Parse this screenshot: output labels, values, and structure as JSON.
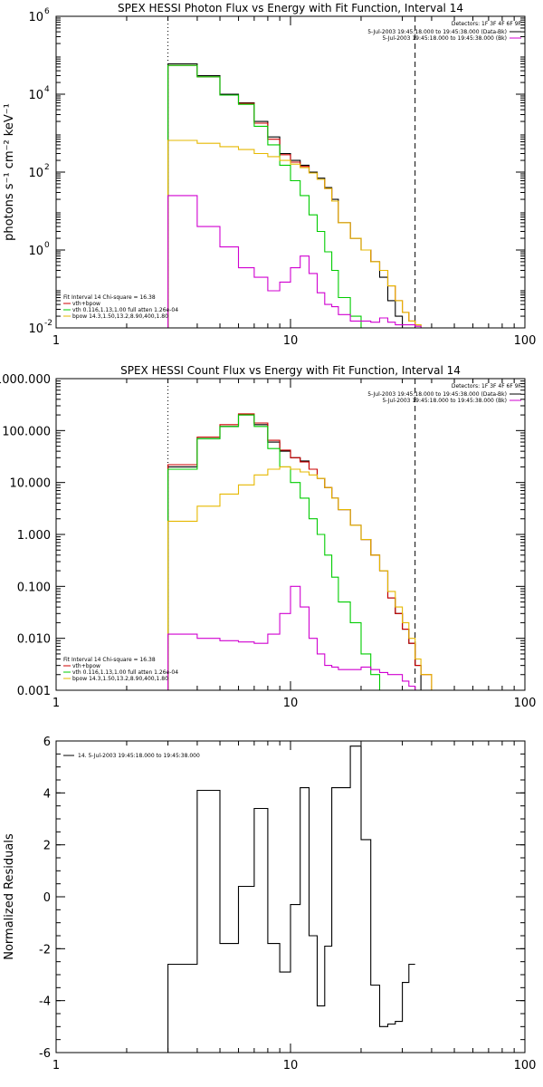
{
  "chart_data": [
    {
      "type": "line",
      "title": "SPEX HESSI Photon Flux vs Energy with Fit Function, Interval 14",
      "xlabel": "",
      "ylabel": "photons s⁻¹ cm⁻² keV⁻¹",
      "xscale": "log",
      "yscale": "log",
      "xlim": [
        1,
        100
      ],
      "ylim": [
        0.01,
        1000000
      ],
      "xticks": [
        1,
        10,
        100
      ],
      "yticks": [
        0.01,
        1,
        100,
        10000,
        1000000
      ],
      "ytick_labels": [
        "10",
        "10",
        "10",
        "10",
        "10"
      ],
      "ytick_exps": [
        "-2",
        "0",
        "2",
        "4",
        "6"
      ],
      "vlines": [
        {
          "x": 3,
          "style": "dotted"
        },
        {
          "x": 34,
          "style": "dashed"
        }
      ],
      "legend_header": "Detectors: 1F 3F 4F 6F 9F",
      "legend": [
        {
          "text": "5-Jul-2003 19:45:18.000 to 19:45:38.000 (Data-Bk)",
          "color": "#000000"
        },
        {
          "text": "5-Jul-2003 19:45:18.000 to 19:45:38.000 (Bk)",
          "color": "#d000d0"
        }
      ],
      "fit_header": "Fit Interval 14   Chi-square = 16.38",
      "fit_legend": [
        {
          "text": "vth+bpow",
          "color": "#cc0000"
        },
        {
          "text": "vth 0.116,1.13,1.00  full atten 1.26e-04",
          "color": "#00cc00"
        },
        {
          "text": "bpow 14.3,1.50,13.2,8.90,400,1.80",
          "color": "#e6b800"
        }
      ],
      "edges": [
        3,
        3.5,
        4,
        4.5,
        5,
        5.5,
        6,
        6.5,
        7,
        8,
        9,
        10,
        11,
        12,
        13,
        14,
        15,
        16,
        18,
        20,
        22,
        24,
        26,
        28,
        30,
        32,
        34,
        36,
        40
      ],
      "series": [
        {
          "name": "Data-Bk",
          "color": "#000000",
          "values": [
            60000,
            60000,
            30000,
            30000,
            10000,
            10000,
            6000,
            6000,
            2000,
            800,
            300,
            200,
            150,
            100,
            70,
            40,
            20,
            5,
            2,
            1,
            0.5,
            0.2,
            0.05,
            0.02,
            0.01,
            null,
            null,
            null
          ]
        },
        {
          "name": "vth+bpow",
          "color": "#cc0000",
          "values": [
            55000,
            55000,
            28000,
            28000,
            9500,
            9500,
            5800,
            5800,
            1800,
            700,
            280,
            180,
            140,
            95,
            65,
            38,
            18,
            5,
            2,
            1,
            0.5,
            0.3,
            0.12,
            0.05,
            0.025,
            0.015,
            0.012,
            0.01
          ]
        },
        {
          "name": "vth",
          "color": "#00cc00",
          "values": [
            55000,
            55000,
            28000,
            28000,
            9500,
            9500,
            5500,
            5500,
            1500,
            500,
            150,
            60,
            25,
            8,
            3,
            0.9,
            0.3,
            0.06,
            0.02,
            0.01,
            null,
            null,
            null,
            null,
            null,
            null,
            null,
            null
          ]
        },
        {
          "name": "bpow",
          "color": "#e6b800",
          "values": [
            650,
            650,
            550,
            550,
            450,
            450,
            380,
            380,
            300,
            250,
            200,
            160,
            130,
            95,
            65,
            38,
            18,
            5,
            2,
            1,
            0.5,
            0.3,
            0.12,
            0.05,
            0.025,
            0.015,
            0.012,
            0.01
          ]
        },
        {
          "name": "Bk",
          "color": "#d000d0",
          "values": [
            25,
            25,
            4,
            4,
            1.2,
            1.2,
            0.35,
            0.35,
            0.2,
            0.09,
            0.15,
            0.35,
            0.7,
            0.25,
            0.08,
            0.04,
            0.035,
            0.022,
            0.015,
            0.015,
            0.014,
            0.018,
            0.014,
            0.012,
            0.012,
            0.012,
            0.011,
            null
          ]
        }
      ]
    },
    {
      "type": "line",
      "title": "SPEX HESSI Count Flux vs Energy with Fit Function, Interval 14",
      "xlabel": "",
      "ylabel": "",
      "xscale": "log",
      "yscale": "log",
      "xlim": [
        1,
        100
      ],
      "ylim": [
        0.001,
        1000
      ],
      "xticks": [
        1,
        10,
        100
      ],
      "yticks": [
        0.001,
        0.01,
        0.1,
        1,
        10,
        100,
        1000
      ],
      "ytick_labels": [
        "0.001",
        "0.010",
        "0.100",
        "1.000",
        "10.000",
        "100.000",
        "1000.000"
      ],
      "vlines": [
        {
          "x": 3,
          "style": "dotted"
        },
        {
          "x": 34,
          "style": "dashed"
        }
      ],
      "legend_header": "Detectors: 1F 3F 4F 6F 9F",
      "legend": [
        {
          "text": "5-Jul-2003 19:45:18.000 to 19:45:38.000 (Data-Bk)",
          "color": "#000000"
        },
        {
          "text": "5-Jul-2003 19:45:18.000 to 19:45:38.000 (Bk)",
          "color": "#d000d0"
        }
      ],
      "fit_header": "Fit Interval 14   Chi-square = 16.38",
      "fit_legend": [
        {
          "text": "vth+bpow",
          "color": "#cc0000"
        },
        {
          "text": "vth 0.116,1.13,1.00  full atten 1.26e-04",
          "color": "#00cc00"
        },
        {
          "text": "bpow 14.3,1.50,13.2,8.90,400,1.80",
          "color": "#e6b800"
        }
      ],
      "edges": [
        3,
        3.5,
        4,
        4.5,
        5,
        5.5,
        6,
        6.5,
        7,
        8,
        9,
        10,
        11,
        12,
        13,
        14,
        15,
        16,
        18,
        20,
        22,
        24,
        26,
        28,
        30,
        32,
        34,
        36,
        40
      ],
      "series": [
        {
          "name": "Data-Bk",
          "color": "#000000",
          "values": [
            20,
            20,
            70,
            70,
            120,
            120,
            200,
            200,
            130,
            60,
            40,
            30,
            26,
            18,
            12,
            8,
            5,
            3,
            1.5,
            0.8,
            0.4,
            0.2,
            0.06,
            0.03,
            0.015,
            0.008,
            0.003,
            null
          ]
        },
        {
          "name": "vth+bpow",
          "color": "#cc0000",
          "values": [
            22,
            22,
            75,
            75,
            130,
            130,
            210,
            210,
            140,
            65,
            42,
            30,
            25,
            18,
            12,
            8,
            5,
            3,
            1.5,
            0.8,
            0.4,
            0.2,
            0.06,
            0.03,
            0.015,
            0.008,
            0.003,
            0.002
          ]
        },
        {
          "name": "vth",
          "color": "#00cc00",
          "values": [
            18,
            18,
            70,
            70,
            120,
            120,
            200,
            200,
            120,
            45,
            20,
            10,
            5,
            2,
            1,
            0.4,
            0.15,
            0.05,
            0.02,
            0.005,
            0.002,
            null,
            null,
            null,
            null,
            null,
            null,
            null
          ]
        },
        {
          "name": "bpow",
          "color": "#e6b800",
          "values": [
            1.8,
            1.8,
            3.5,
            3.5,
            6,
            6,
            9,
            9,
            14,
            18,
            20,
            18,
            16,
            14,
            12,
            8,
            5,
            3,
            1.5,
            0.8,
            0.4,
            0.2,
            0.08,
            0.04,
            0.02,
            0.01,
            0.004,
            0.002
          ]
        },
        {
          "name": "Bk",
          "color": "#d000d0",
          "values": [
            0.012,
            0.012,
            0.01,
            0.01,
            0.009,
            0.009,
            0.0085,
            0.0085,
            0.008,
            0.012,
            0.03,
            0.1,
            0.04,
            0.01,
            0.005,
            0.003,
            0.0028,
            0.0025,
            0.0025,
            0.0028,
            0.0025,
            0.0022,
            0.002,
            0.002,
            0.0015,
            0.0012,
            0.001,
            null
          ]
        }
      ]
    },
    {
      "type": "line",
      "title": "",
      "xlabel": "",
      "ylabel": "Normalized Residuals",
      "xscale": "log",
      "yscale": "linear",
      "xlim": [
        1,
        100
      ],
      "ylim": [
        -6,
        6
      ],
      "xticks": [
        1,
        10,
        100
      ],
      "yticks": [
        -6,
        -4,
        -2,
        0,
        2,
        4,
        6
      ],
      "ytick_labels": [
        "-6",
        "-4",
        "-2",
        "0",
        "2",
        "4",
        "6"
      ],
      "legend": [
        {
          "text": "14.  5-Jul-2003 19:45:18.000 to 19:45:38.000",
          "color": "#000000"
        }
      ],
      "edges": [
        3,
        3.5,
        4,
        4.5,
        5,
        5.5,
        6,
        6.5,
        7,
        8,
        9,
        10,
        11,
        12,
        13,
        14,
        15,
        16,
        18,
        20,
        22,
        24,
        26,
        28,
        30,
        32,
        34
      ],
      "series": [
        {
          "name": "",
          "color": "#000000",
          "values": [
            -2.6,
            -2.6,
            4.1,
            4.1,
            -1.8,
            -1.8,
            0.4,
            0.4,
            3.4,
            -1.8,
            -2.9,
            -0.3,
            4.2,
            -1.5,
            -4.2,
            -1.9,
            4.2,
            4.2,
            5.8,
            2.2,
            -3.4,
            -5.0,
            -4.9,
            -4.8,
            -3.3,
            -2.6,
            -2.6
          ]
        }
      ]
    }
  ]
}
